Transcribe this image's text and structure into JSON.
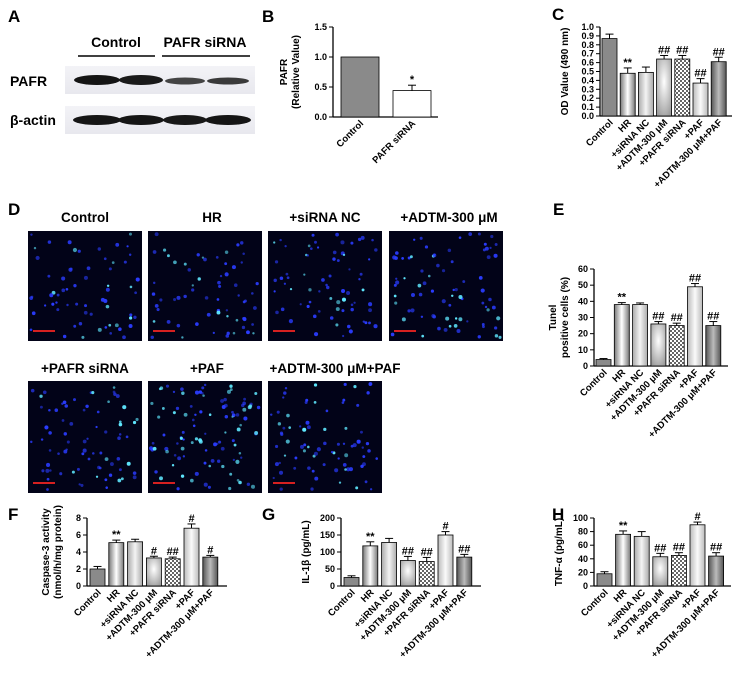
{
  "panel_labels": [
    "A",
    "B",
    "C",
    "D",
    "E",
    "F",
    "G",
    "H"
  ],
  "blot": {
    "groups": [
      "Control",
      "PAFR siRNA"
    ],
    "rows": [
      "PAFR",
      "β-actin"
    ]
  },
  "micro": {
    "titles": [
      "Control",
      "HR",
      "+siRNA NC",
      "+ADTM-300 μM",
      "+PAFR siRNA",
      "+PAF",
      "+ADTM-300 μM+PAF"
    ],
    "cell_density": [
      0.35,
      0.35,
      0.45,
      0.55,
      0.5,
      0.9,
      0.55
    ]
  },
  "colors": {
    "scale_bar": "#d62020",
    "micro_bg": "#020318",
    "nucleus": "#2a3cff",
    "apoptotic": "#5fe8ff"
  },
  "chart_data": [
    {
      "id": "B",
      "type": "bar",
      "categories": [
        "Control",
        "PAFR siRNA"
      ],
      "values": [
        1.0,
        0.44
      ],
      "errors": [
        0,
        0.09
      ],
      "sig": [
        "",
        "*"
      ],
      "ylabel": "PAFR\n(Relative Value)",
      "ylim": [
        0,
        1.5
      ],
      "yticks": [
        "0.0",
        "0.5",
        "1.0",
        "1.5"
      ]
    },
    {
      "id": "C",
      "type": "bar",
      "categories": [
        "Control",
        "HR",
        "+siRNA NC",
        "+ADTM-300 μM",
        "+PAFR siRNA",
        "+PAF",
        "+ADTM-300 μM+PAF"
      ],
      "values": [
        0.87,
        0.48,
        0.49,
        0.64,
        0.64,
        0.37,
        0.61
      ],
      "errors": [
        0.05,
        0.06,
        0.06,
        0.04,
        0.04,
        0.05,
        0.05
      ],
      "sig": [
        "",
        "**",
        "",
        "##",
        "##",
        "##",
        "##"
      ],
      "ylabel": "OD Value (490 nm)",
      "ylim": [
        0,
        1.0
      ],
      "yticks": [
        "0.0",
        "0.1",
        "0.2",
        "0.3",
        "0.4",
        "0.5",
        "0.6",
        "0.7",
        "0.8",
        "0.9",
        "1.0"
      ]
    },
    {
      "id": "E",
      "type": "bar",
      "categories": [
        "Control",
        "HR",
        "+siRNA NC",
        "+ADTM-300 μM",
        "+PAFR siRNA",
        "+PAF",
        "+ADTM-300 μM+PAF"
      ],
      "values": [
        4,
        38,
        38,
        26,
        25,
        49,
        25
      ],
      "errors": [
        0.6,
        1.2,
        1.0,
        1.5,
        1.5,
        2.0,
        2.5
      ],
      "sig": [
        "",
        "**",
        "",
        "##",
        "##",
        "##",
        "##"
      ],
      "ylabel": "Tunel\npositive cells (%)",
      "ylim": [
        0,
        60
      ],
      "yticks": [
        "0",
        "10",
        "20",
        "30",
        "40",
        "50",
        "60"
      ]
    },
    {
      "id": "F",
      "type": "bar",
      "categories": [
        "Control",
        "HR",
        "+siRNA NC",
        "+ADTM-300 μM",
        "+PAFR siRNA",
        "+PAF",
        "+ADTM-300 μM+PAF"
      ],
      "values": [
        2.0,
        5.1,
        5.2,
        3.3,
        3.2,
        6.8,
        3.4
      ],
      "errors": [
        0.3,
        0.3,
        0.3,
        0.2,
        0.2,
        0.5,
        0.2
      ],
      "sig": [
        "",
        "**",
        "",
        "#",
        "##",
        "#",
        "#"
      ],
      "ylabel": "Caspase-3 activity\n(nmol/h/mg protein)",
      "ylim": [
        0,
        8
      ],
      "yticks": [
        "0",
        "2",
        "4",
        "6",
        "8"
      ]
    },
    {
      "id": "G",
      "type": "bar",
      "categories": [
        "Control",
        "HR",
        "+siRNA NC",
        "+ADTM-300 μM",
        "+PAFR siRNA",
        "+PAF",
        "+ADTM-300 μM+PAF"
      ],
      "values": [
        25,
        118,
        128,
        75,
        72,
        150,
        85
      ],
      "errors": [
        5,
        12,
        12,
        12,
        12,
        10,
        8
      ],
      "sig": [
        "",
        "**",
        "",
        "##",
        "##",
        "#",
        "##"
      ],
      "ylabel": "IL-1β (pg/mL)",
      "ylim": [
        0,
        200
      ],
      "yticks": [
        "0",
        "50",
        "100",
        "150",
        "200"
      ]
    },
    {
      "id": "H",
      "type": "bar",
      "categories": [
        "Control",
        "HR",
        "+siRNA NC",
        "+ADTM-300 μM",
        "+PAFR siRNA",
        "+PAF",
        "+ADTM-300 μM+PAF"
      ],
      "values": [
        18,
        76,
        73,
        43,
        45,
        90,
        44
      ],
      "errors": [
        3,
        5,
        7,
        5,
        4,
        4,
        5
      ],
      "sig": [
        "",
        "**",
        "",
        "##",
        "##",
        "#",
        "##"
      ],
      "ylabel": "TNF-α (pg/mL)",
      "ylim": [
        0,
        100
      ],
      "yticks": [
        "0",
        "20",
        "40",
        "60",
        "80",
        "100"
      ]
    }
  ]
}
